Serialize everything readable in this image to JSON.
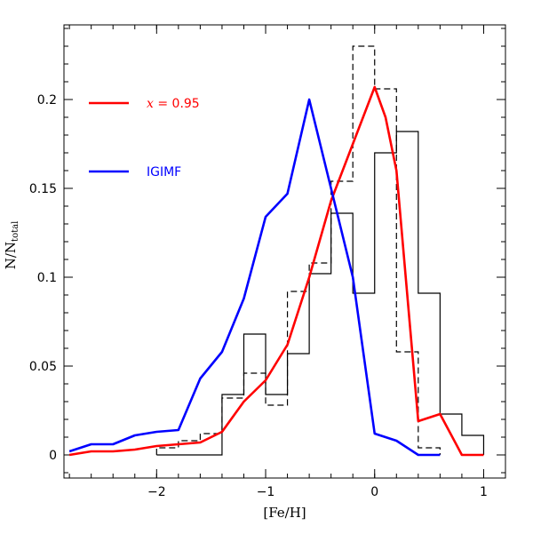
{
  "chart_data": {
    "type": "line",
    "xlabel": "[Fe/H]",
    "ylabel_main": "N/N",
    "ylabel_sub": "total",
    "xlim": [
      -2.85,
      1.2
    ],
    "ylim": [
      -0.013,
      0.242
    ],
    "x_ticks": [
      -2,
      -1,
      0,
      1
    ],
    "x_tick_labels": [
      "−2",
      "−1",
      "0",
      "1"
    ],
    "y_ticks": [
      0,
      0.05,
      0.1,
      0.15,
      0.2
    ],
    "y_tick_labels": [
      "0",
      "0.05",
      "0.1",
      "0.15",
      "0.2"
    ],
    "x_minor_step": 0.2,
    "y_minor_step": 0.01,
    "grid": false,
    "legend_position": "top-left",
    "legend": [
      {
        "label_var": "x",
        "label_rest": " = 0.95",
        "color": "#ff0000"
      },
      {
        "label_var": "",
        "label_rest": "IGIMF",
        "color": "#0000ff"
      }
    ],
    "series": [
      {
        "style": "step-solid",
        "color": "#000000",
        "bin_edges": [
          -2.0,
          -1.8,
          -1.6,
          -1.4,
          -1.2,
          -1.0,
          -0.8,
          -0.6,
          -0.4,
          -0.2,
          0.0,
          0.2,
          0.4,
          0.6,
          0.8,
          1.0
        ],
        "values": [
          0,
          0,
          0,
          0.034,
          0.068,
          0.034,
          0.057,
          0.102,
          0.136,
          0.091,
          0.17,
          0.182,
          0.091,
          0.023,
          0.011
        ]
      },
      {
        "style": "step-dashed",
        "color": "#000000",
        "bin_edges": [
          -2.0,
          -1.8,
          -1.6,
          -1.4,
          -1.2,
          -1.0,
          -0.8,
          -0.6,
          -0.4,
          -0.2,
          0.0,
          0.2,
          0.4,
          0.6
        ],
        "values": [
          0.004,
          0.008,
          0.012,
          0.032,
          0.046,
          0.028,
          0.092,
          0.108,
          0.154,
          0.23,
          0.206,
          0.058,
          0.004
        ]
      },
      {
        "style": "line",
        "color": "#ff0000",
        "x": [
          -2.8,
          -2.6,
          -2.4,
          -2.2,
          -2.0,
          -1.8,
          -1.6,
          -1.4,
          -1.2,
          -1.0,
          -0.8,
          -0.6,
          -0.4,
          -0.2,
          0.0,
          0.1,
          0.2,
          0.4,
          0.6,
          0.8,
          1.0
        ],
        "values": [
          0.0,
          0.002,
          0.002,
          0.003,
          0.005,
          0.006,
          0.007,
          0.013,
          0.03,
          0.042,
          0.062,
          0.1,
          0.143,
          0.175,
          0.207,
          0.19,
          0.16,
          0.019,
          0.023,
          0.0,
          0.0
        ]
      },
      {
        "style": "line",
        "color": "#0000ff",
        "x": [
          -2.8,
          -2.7,
          -2.6,
          -2.5,
          -2.4,
          -2.2,
          -2.0,
          -1.8,
          -1.6,
          -1.4,
          -1.2,
          -1.0,
          -0.8,
          -0.6,
          -0.4,
          -0.2,
          0.0,
          0.2,
          0.4,
          0.6
        ],
        "values": [
          0.002,
          0.004,
          0.006,
          0.006,
          0.006,
          0.011,
          0.013,
          0.014,
          0.043,
          0.058,
          0.088,
          0.134,
          0.147,
          0.2,
          0.15,
          0.1,
          0.012,
          0.008,
          0.0,
          0.0
        ]
      }
    ]
  }
}
